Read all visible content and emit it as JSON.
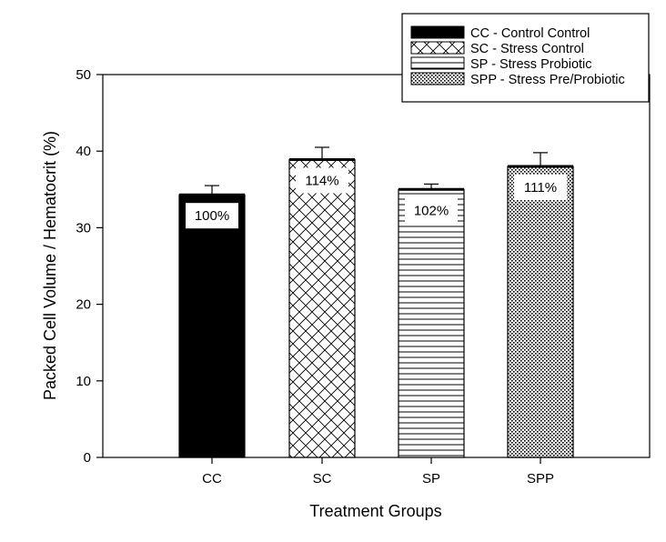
{
  "chart_data": {
    "type": "bar",
    "categories": [
      "CC",
      "SC",
      "SP",
      "SPP"
    ],
    "values": [
      34.3,
      38.9,
      35.0,
      38.0
    ],
    "errors": [
      1.2,
      1.6,
      0.7,
      1.8
    ],
    "data_labels": [
      "100%",
      "114%",
      "102%",
      "111%"
    ],
    "patterns": [
      "solid",
      "crosshatch",
      "horizontal",
      "dots"
    ],
    "xlabel": "Treatment Groups",
    "ylabel": "Packed Cell Volume / Hematocrit (%)",
    "ylim": [
      0,
      50
    ],
    "yticks": [
      0,
      10,
      20,
      30,
      40,
      50
    ],
    "grid": false,
    "legend_position": "top-right",
    "legend": [
      "CC - Control Control",
      "SC - Stress Control",
      "SP - Stress Probiotic",
      "SPP - Stress Pre/Probiotic"
    ]
  }
}
